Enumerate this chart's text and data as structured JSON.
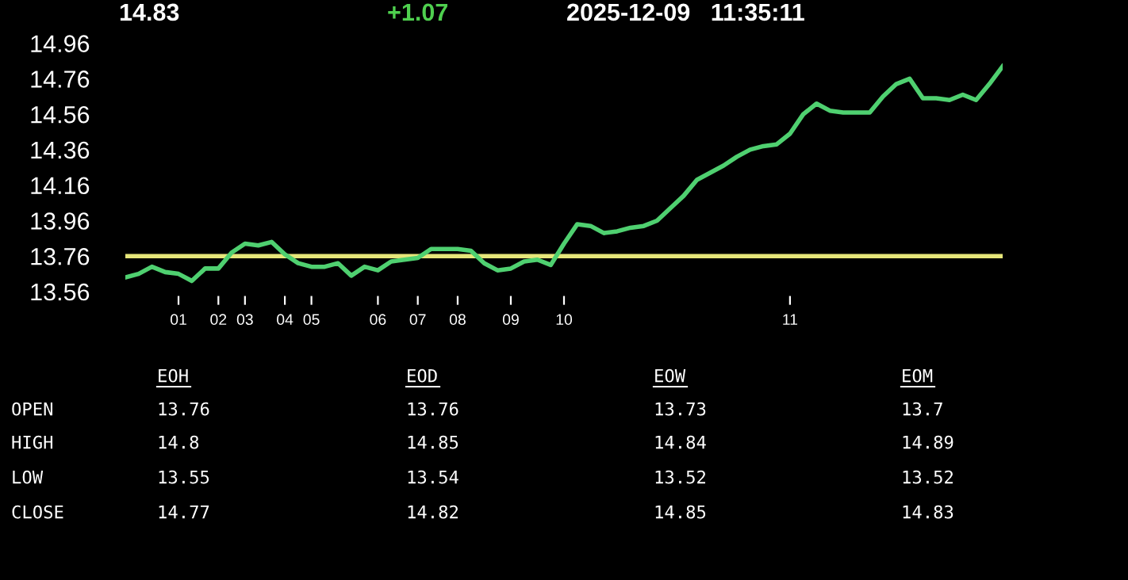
{
  "chart_data": [
    {
      "type": "line",
      "title": "14.83",
      "annotations": [
        "+1.07",
        "2025-12-09   11:35:11"
      ],
      "categories": [
        null,
        null,
        null,
        null,
        "01",
        null,
        null,
        "02",
        null,
        "03",
        null,
        null,
        "04",
        null,
        "05",
        null,
        null,
        null,
        null,
        "06",
        null,
        null,
        "07",
        null,
        null,
        "08",
        null,
        null,
        null,
        "09",
        null,
        null,
        null,
        "10",
        null,
        null,
        null,
        null,
        null,
        null,
        null,
        null,
        null,
        null,
        null,
        null,
        null,
        null,
        null,
        null,
        "11",
        null,
        null,
        null,
        null,
        null,
        null,
        null,
        null,
        null,
        null,
        null,
        null,
        null,
        null,
        null,
        null
      ],
      "series": [
        {
          "color": "#4fd070",
          "values": [
            13.64,
            13.66,
            13.7,
            13.67,
            13.66,
            13.62,
            13.69,
            13.69,
            13.78,
            13.83,
            13.82,
            13.84,
            13.77,
            13.72,
            13.7,
            13.7,
            13.72,
            13.65,
            13.7,
            13.68,
            13.73,
            13.74,
            13.75,
            13.8,
            13.8,
            13.8,
            13.79,
            13.72,
            13.68,
            13.69,
            13.73,
            13.74,
            13.71,
            13.83,
            13.94,
            13.93,
            13.89,
            13.9,
            13.92,
            13.93,
            13.96,
            14.03,
            14.1,
            14.19,
            14.23,
            14.27,
            14.32,
            14.36,
            14.38,
            14.39,
            14.45,
            14.56,
            14.62,
            14.58,
            14.57,
            14.57,
            14.57,
            14.66,
            14.73,
            14.76,
            14.65,
            14.65,
            14.64,
            14.67,
            14.64,
            14.73,
            14.83
          ]
        }
      ],
      "ylim": [
        13.56,
        14.96
      ],
      "yticks": [
        13.56,
        13.76,
        13.96,
        14.16,
        14.36,
        14.56,
        14.76,
        14.96
      ],
      "ref_lines": [
        {
          "axis": "y",
          "value": 13.76,
          "color": "#e6e67a"
        }
      ]
    },
    {
      "type": "other",
      "categories": [
        "EOH",
        "EOD",
        "EOW",
        "EOM"
      ],
      "y_categories": [
        "OPEN",
        "HIGH",
        "LOW",
        "CLOSE"
      ],
      "cell_labels": [
        [
          "13.76",
          "13.76",
          "13.73",
          "13.7"
        ],
        [
          "14.8",
          "14.85",
          "14.84",
          "14.89"
        ],
        [
          "13.55",
          "13.54",
          "13.52",
          "13.52"
        ],
        [
          "14.77",
          "14.82",
          "14.85",
          "14.83"
        ]
      ]
    }
  ]
}
